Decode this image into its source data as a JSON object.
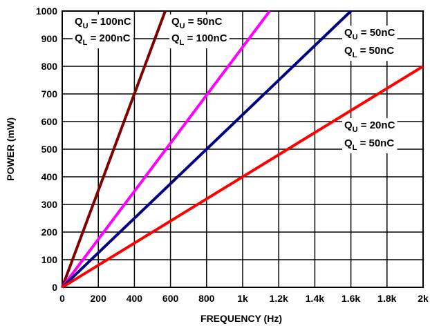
{
  "chart_data": {
    "type": "line",
    "xlabel": "FREQUENCY (Hz)",
    "ylabel": "POWER (mW)",
    "xlim": [
      0,
      2000
    ],
    "ylim": [
      0,
      1000
    ],
    "grid": true,
    "x_ticks": [
      0,
      200,
      400,
      600,
      800,
      1000,
      1200,
      1400,
      1600,
      1800,
      2000
    ],
    "x_tick_labels": [
      "0",
      "200",
      "400",
      "600",
      "800",
      "1k",
      "1.2k",
      "1.4k",
      "1.6k",
      "1.8k",
      "2k"
    ],
    "y_ticks": [
      0,
      100,
      200,
      300,
      400,
      500,
      600,
      700,
      800,
      900,
      1000
    ],
    "y_tick_labels": [
      "0",
      "100",
      "200",
      "300",
      "400",
      "500",
      "600",
      "700",
      "800",
      "900",
      "1000"
    ],
    "series": [
      {
        "color": "#800000",
        "x": [
          0,
          571
        ],
        "y": [
          0,
          1000
        ],
        "label": [
          "Q",
          "U",
          " = 100nC",
          "Q",
          "L",
          " = 200nC"
        ]
      },
      {
        "color": "#ff00ff",
        "x": [
          0,
          1150
        ],
        "y": [
          0,
          1000
        ],
        "label": [
          "Q",
          "U",
          " = 50nC",
          "Q",
          "L",
          " = 100nC"
        ]
      },
      {
        "color": "#000080",
        "x": [
          0,
          1600
        ],
        "y": [
          0,
          1000
        ],
        "label": [
          "Q",
          "U",
          " = 50nC",
          "Q",
          "L",
          " = 50nC"
        ]
      },
      {
        "color": "#ff0000",
        "x": [
          0,
          2000
        ],
        "y": [
          0,
          800
        ],
        "label": [
          "Q",
          "U",
          " = 20nC",
          "Q",
          "L",
          " = 50nC"
        ]
      }
    ]
  }
}
